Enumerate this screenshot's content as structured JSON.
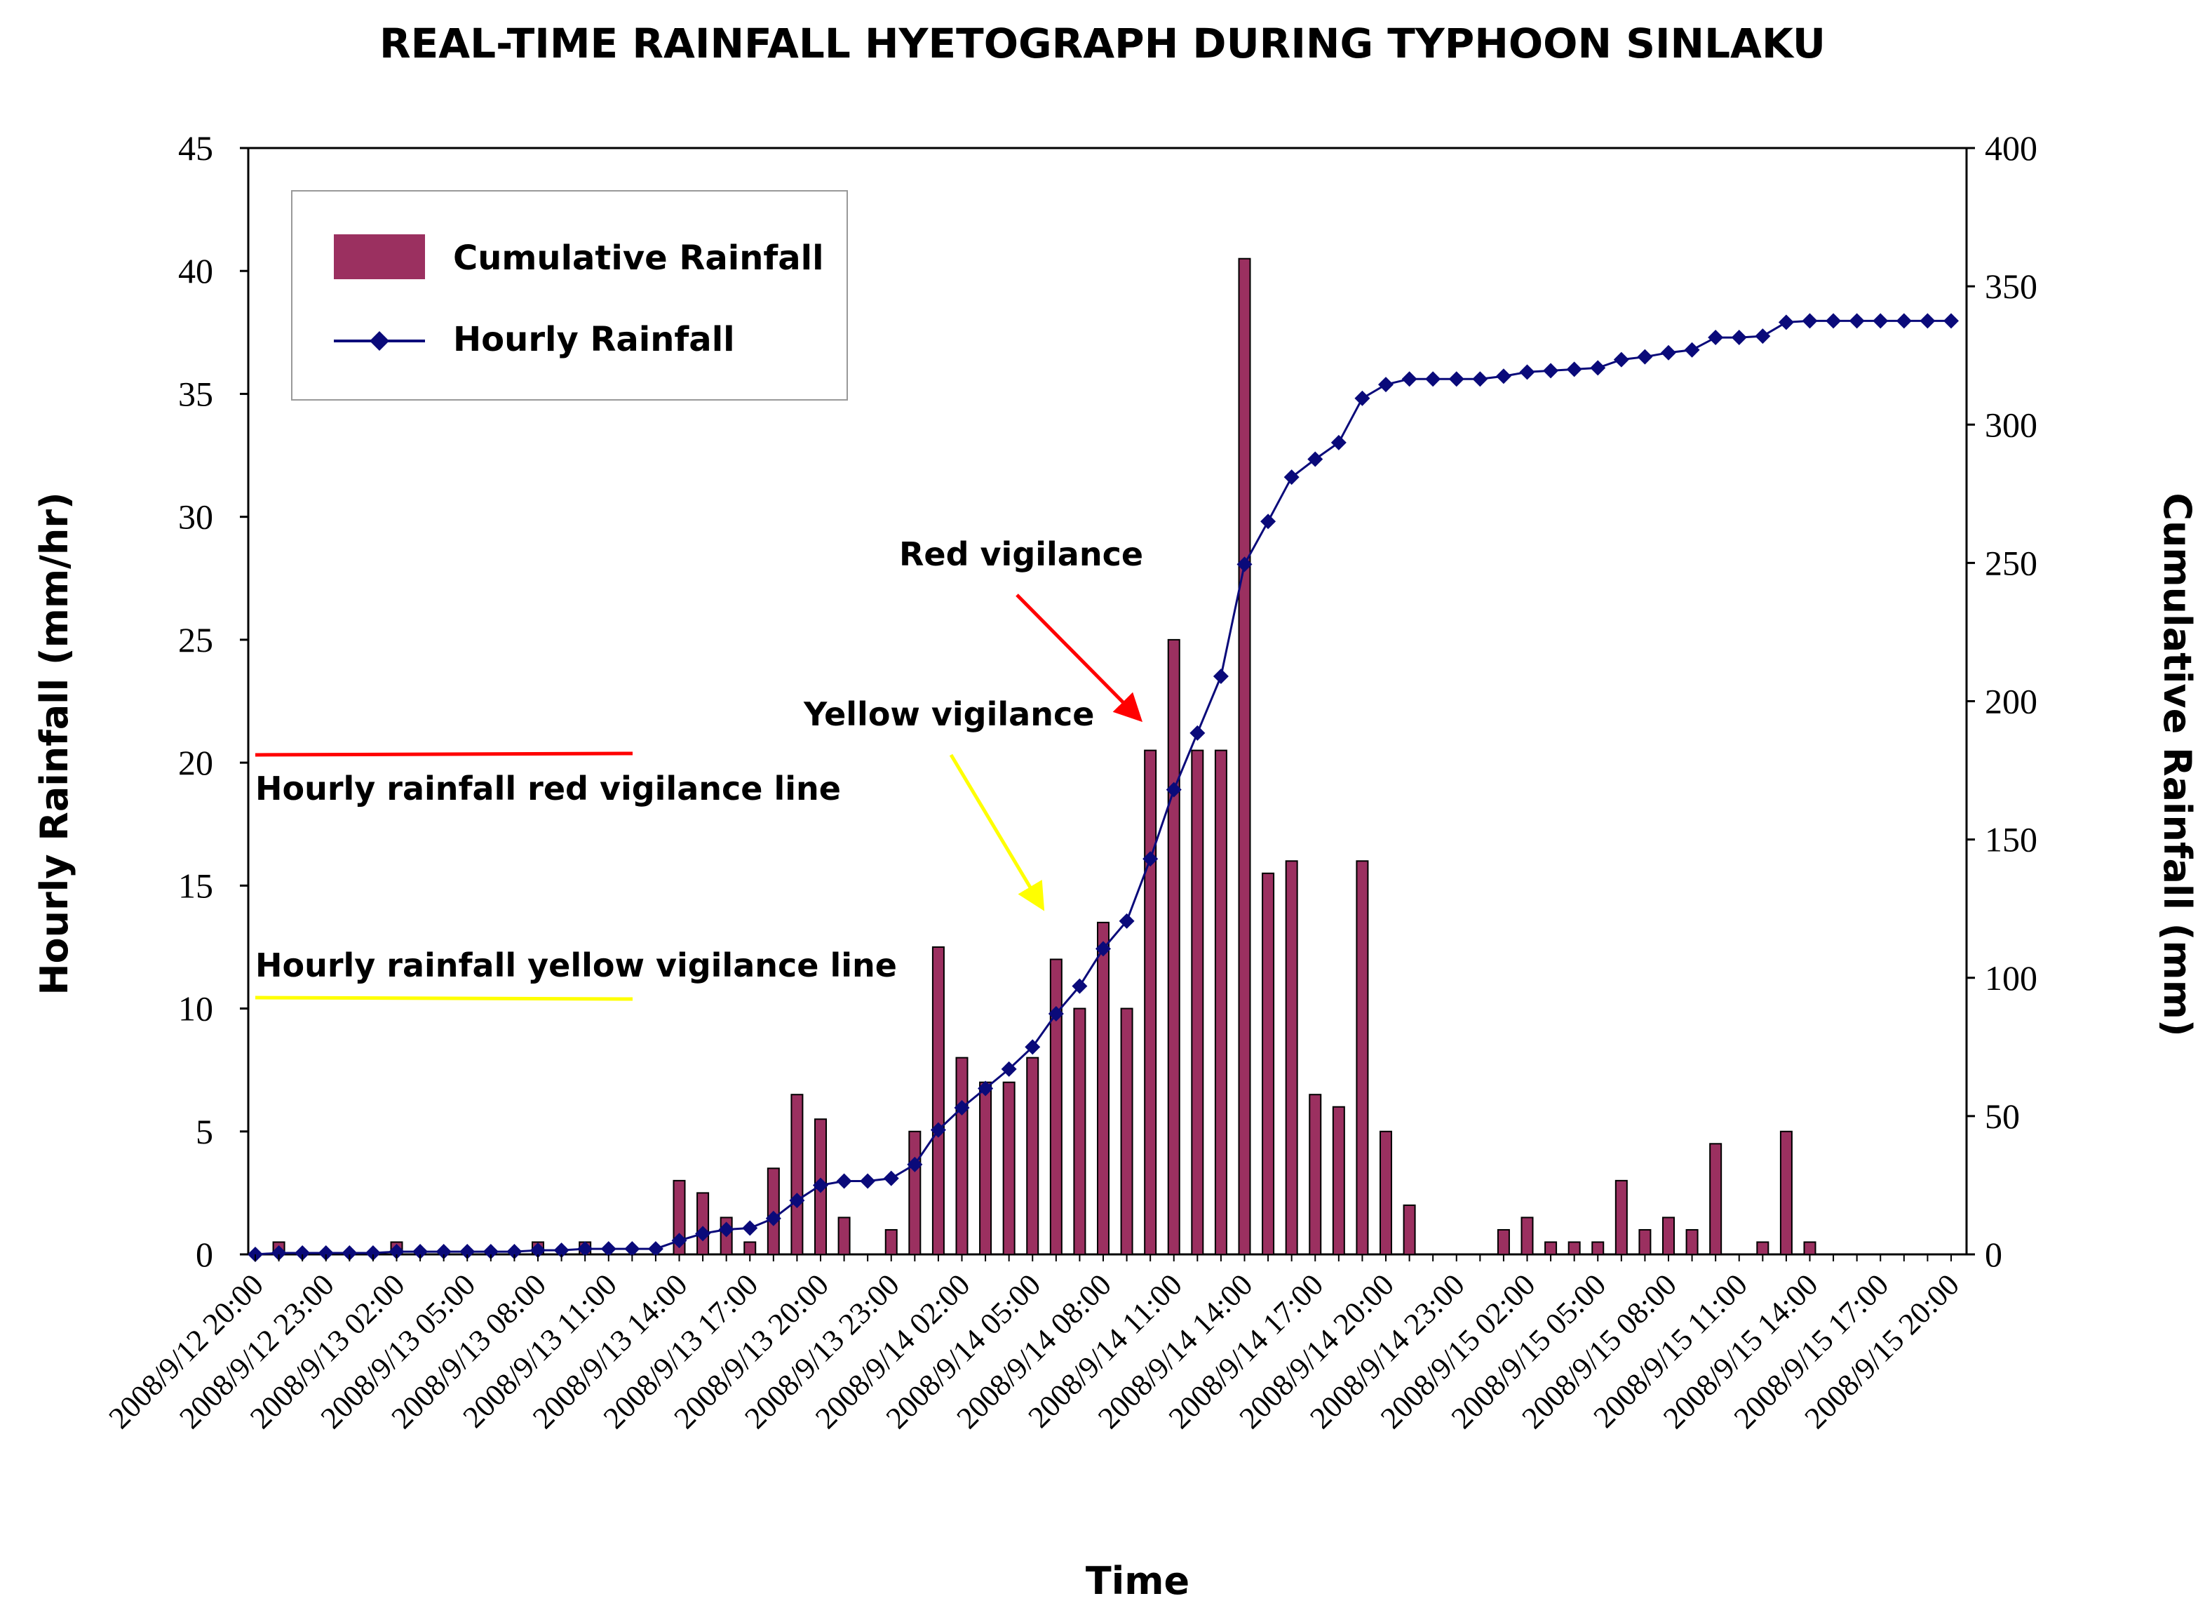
{
  "chart_data": {
    "type": "bar+line",
    "title": "REAL-TIME RAINFALL HYETOGRAPH DURING TYPHOON SINLAKU",
    "xlabel": "Time",
    "ylabel_left": "Hourly  Rainfall (mm/hr)",
    "ylabel_right": "Cumulative Rainfall (mm)",
    "ylim_left": [
      0,
      45
    ],
    "ylim_right": [
      0,
      400
    ],
    "yticks_left": [
      "0",
      "5",
      "10",
      "15",
      "20",
      "25",
      "30",
      "35",
      "40",
      "45"
    ],
    "yticks_right": [
      "0",
      "50",
      "100",
      "150",
      "200",
      "250",
      "300",
      "350",
      "400"
    ],
    "xtick_labels": [
      "2008/9/12 20:00",
      "2008/9/12 23:00",
      "2008/9/13 02:00",
      "2008/9/13 05:00",
      "2008/9/13 08:00",
      "2008/9/13 11:00",
      "2008/9/13 14:00",
      "2008/9/13 17:00",
      "2008/9/13 20:00",
      "2008/9/13 23:00",
      "2008/9/14 02:00",
      "2008/9/14 05:00",
      "2008/9/14 08:00",
      "2008/9/14 11:00",
      "2008/9/14 14:00",
      "2008/9/14 17:00",
      "2008/9/14 20:00",
      "2008/9/14 23:00",
      "2008/9/15 02:00",
      "2008/9/15 05:00",
      "2008/9/15 08:00",
      "2008/9/15 11:00",
      "2008/9/15 14:00",
      "2008/9/15 17:00",
      "2008/9/15 20:00"
    ],
    "xtick_interval_hours": 3,
    "series": [
      {
        "name": "Cumulative Rainfall",
        "kind": "bar",
        "axis": "left",
        "color": "#8B2252",
        "values": [
          0,
          0.5,
          0,
          0,
          0,
          0,
          0.5,
          0,
          0,
          0,
          0,
          0,
          0.5,
          0,
          0.5,
          0,
          0,
          0,
          3,
          2.5,
          1.5,
          0.5,
          3.5,
          6.5,
          5.5,
          1.5,
          0,
          1,
          5,
          12.5,
          8,
          7,
          7,
          8,
          12,
          10,
          13.5,
          10,
          20.5,
          25,
          20.5,
          20.5,
          40.5,
          15.5,
          16,
          6.5,
          6,
          16,
          5,
          2,
          0,
          0,
          0,
          1,
          1.5,
          0.5,
          0.5,
          0.5,
          3,
          1,
          1.5,
          1,
          4.5,
          0,
          0.5,
          5,
          0.5,
          0,
          0,
          0,
          0,
          0,
          0
        ]
      },
      {
        "name": "Hourly  Rainfall",
        "kind": "line",
        "axis": "right",
        "color": "#0A0A7A",
        "values": [
          0,
          0.5,
          0.5,
          0.5,
          0.5,
          0.5,
          1,
          1,
          1,
          1,
          1,
          1,
          1.5,
          1.5,
          2,
          2,
          2,
          2,
          5,
          7.5,
          9,
          9.5,
          13,
          19.5,
          25,
          26.5,
          26.5,
          27.5,
          32.5,
          45,
          53,
          60,
          67,
          75,
          87,
          97,
          110.5,
          120.5,
          143,
          168,
          188.5,
          209,
          249.5,
          265,
          281,
          287.5,
          293.5,
          309.5,
          314.5,
          316.5,
          316.5,
          316.5,
          316.5,
          317.5,
          319,
          319.5,
          320,
          320.5,
          323.5,
          324.5,
          326,
          327,
          331.5,
          331.5,
          332,
          337,
          337.5,
          337.5,
          337.5,
          337.5,
          337.5,
          337.5,
          337.5
        ]
      }
    ],
    "legend": [
      "Cumulative Rainfall",
      "Hourly  Rainfall"
    ],
    "legend_position": "top-left",
    "reference_lines": [
      {
        "label": "Hourly rainfall red vigilance line",
        "value": 20.3,
        "color": "#FF0000"
      },
      {
        "label": "Hourly rainfall yellow vigilance line",
        "value": 10.4,
        "color": "#FFFF00"
      }
    ],
    "annotations": [
      {
        "text": "Red vigilance",
        "color": "#FF0000"
      },
      {
        "text": "Yellow vigilance",
        "color": "#FFFF00"
      }
    ]
  }
}
